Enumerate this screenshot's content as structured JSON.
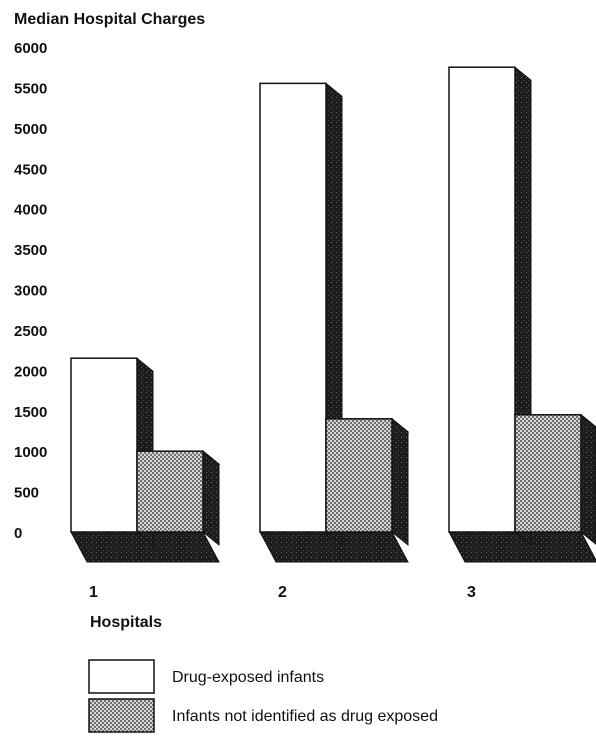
{
  "chart_data": {
    "type": "bar",
    "title": "Median Hospital Charges",
    "xlabel": "Hospitals",
    "ylabel": "",
    "ylim": [
      0,
      6000
    ],
    "yticks": [
      0,
      500,
      1000,
      1500,
      2000,
      2500,
      3000,
      3500,
      4000,
      4500,
      5000,
      5500,
      6000
    ],
    "ytick_labels": [
      "0",
      "500",
      "1000",
      "1500",
      "2000",
      "2500",
      "3000",
      "3500",
      "4000",
      "4500",
      "5000",
      "5500",
      "6000"
    ],
    "categories": [
      "1",
      "2",
      "3"
    ],
    "series": [
      {
        "name": "Drug-exposed infants",
        "values": [
          2150,
          5550,
          5750
        ]
      },
      {
        "name": "Infants not identified as drug exposed",
        "values": [
          1000,
          1400,
          1450
        ]
      }
    ],
    "grid": false,
    "legend_position": "bottom-left",
    "colors": {
      "series_0": "#ffffff",
      "series_1": "#b9b9b9",
      "shadow": "#1c1c1c",
      "outline": "#111111"
    }
  }
}
